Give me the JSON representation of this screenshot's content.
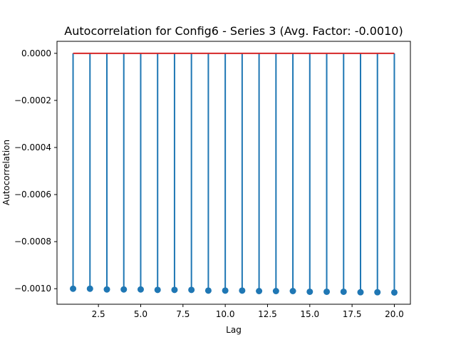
{
  "chart_data": {
    "type": "stem",
    "title": "Autocorrelation for Config6 - Series 3 (Avg. Factor: -0.0010)",
    "xlabel": "Lag",
    "ylabel": "Autocorrelation",
    "xlim": [
      0.05,
      20.95
    ],
    "ylim": [
      -0.001066,
      5.1e-05
    ],
    "x_ticks": [
      2.5,
      5.0,
      7.5,
      10.0,
      12.5,
      15.0,
      17.5,
      20.0
    ],
    "x_tick_labels": [
      "2.5",
      "5.0",
      "7.5",
      "10.0",
      "12.5",
      "15.0",
      "17.5",
      "20.0"
    ],
    "y_ticks": [
      0.0,
      -0.0002,
      -0.0004,
      -0.0006,
      -0.0008,
      -0.001
    ],
    "y_tick_labels": [
      "0.0000",
      "−0.0002",
      "−0.0004",
      "−0.0006",
      "−0.0008",
      "−0.0010"
    ],
    "grid": false,
    "baseline": 0.0,
    "x": [
      1,
      2,
      3,
      4,
      5,
      6,
      7,
      8,
      9,
      10,
      11,
      12,
      13,
      14,
      15,
      16,
      17,
      18,
      19,
      20
    ],
    "values": [
      -0.001,
      -0.001,
      -0.001003,
      -0.001003,
      -0.001003,
      -0.001005,
      -0.001005,
      -0.001005,
      -0.001008,
      -0.001008,
      -0.001008,
      -0.00101,
      -0.00101,
      -0.00101,
      -0.001013,
      -0.001013,
      -0.001013,
      -0.001015,
      -0.001015,
      -0.001016
    ],
    "colors": {
      "stem": "#1f77b4",
      "marker": "#1f77b4",
      "baseline": "#d62728",
      "axes": "#000000"
    }
  }
}
